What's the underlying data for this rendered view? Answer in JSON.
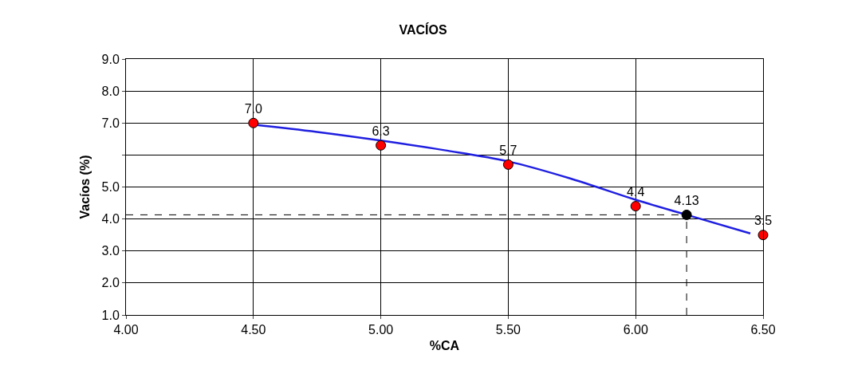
{
  "chart_data": {
    "type": "scatter",
    "title": "VACÍOS",
    "xlabel": "%CA",
    "ylabel": "Vacíos (%)",
    "xlim": [
      4.0,
      6.5
    ],
    "xticks": [
      {
        "value": 4,
        "label": "4.00"
      },
      {
        "value": 4.5,
        "label": "4.50"
      },
      {
        "value": 5,
        "label": "5.00"
      },
      {
        "value": 5.5,
        "label": "5.50"
      },
      {
        "value": 6,
        "label": "6.00"
      },
      {
        "value": 6.5,
        "label": "6.50"
      }
    ],
    "ylim": [
      1,
      9
    ],
    "yticks": [
      {
        "value": 1,
        "label": "1.0"
      },
      {
        "value": 2,
        "label": "2.0"
      },
      {
        "value": 3,
        "label": "3.0"
      },
      {
        "value": 4,
        "label": "4.0"
      },
      {
        "value": 5,
        "label": "5.0"
      },
      {
        "value": 6,
        "label": null
      },
      {
        "value": 7,
        "label": "7.0"
      },
      {
        "value": 8,
        "label": "8.0"
      },
      {
        "value": 9,
        "label": "9.0"
      }
    ],
    "grid": true,
    "legend": false,
    "marker": "circle",
    "series": [
      {
        "type": "line",
        "marker": "none",
        "color": "#1f1fe0",
        "x": [
          4.5,
          4.75,
          5.0,
          5.25,
          5.5,
          5.75,
          6.0,
          6.2,
          6.45
        ],
        "values": [
          6.95,
          6.72,
          6.45,
          6.15,
          5.8,
          5.25,
          4.6,
          4.13,
          3.55
        ]
      },
      {
        "color": "#ff0000",
        "x": [
          4.5,
          5.0,
          5.5,
          6.0,
          6.5
        ],
        "values": [
          7.0,
          6.3,
          5.7,
          4.4,
          3.5
        ],
        "value_labels": [
          "7.0",
          "6.3",
          "5.7",
          "4.4",
          "3.5"
        ]
      },
      {
        "color": "#000000",
        "x": [
          6.2
        ],
        "values": [
          4.13
        ],
        "value_labels": [
          "4.13"
        ]
      }
    ],
    "ref_lines": [
      {
        "axis": "y",
        "value": 4.13,
        "line_style": "dashed",
        "color": "#000000"
      },
      {
        "axis": "x",
        "value": 6.2,
        "line_style": "dashed",
        "color": "#000000"
      }
    ]
  }
}
